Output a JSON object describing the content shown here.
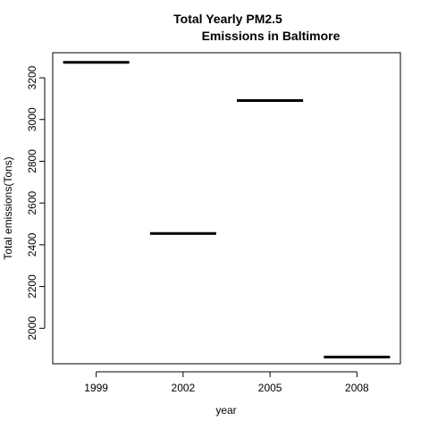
{
  "chart_data": {
    "type": "bar",
    "title": "Total Yearly PM2.5",
    "subtitle": "Emissions in Baltimore",
    "xlabel": "year",
    "ylabel": "Total emissions(Tons)",
    "categories": [
      "1999",
      "2002",
      "2005",
      "2008"
    ],
    "values": [
      3274,
      2454,
      3091,
      1862
    ],
    "ylim": [
      1830,
      3320
    ],
    "yticks": [
      2000,
      2200,
      2400,
      2600,
      2800,
      3000,
      3200
    ],
    "grid": false,
    "legend": "none",
    "colors": {
      "bar": "#000000",
      "axis": "#000000",
      "background": "#ffffff"
    }
  }
}
